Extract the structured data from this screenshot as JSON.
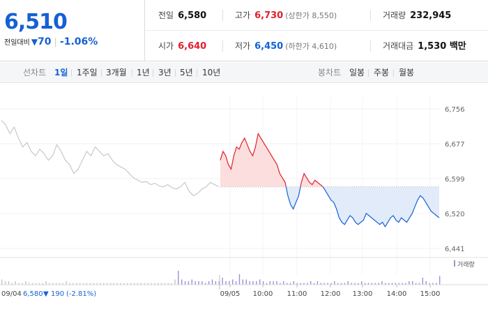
{
  "quote": {
    "price": "6,510",
    "change_label": "전일대비",
    "change_arrow": "▼",
    "change_amount": "70",
    "change_pct": "-1.06%",
    "prev_close": {
      "label": "전일",
      "value": "6,580"
    },
    "high": {
      "label": "고가",
      "value": "6,730",
      "sub": "(상한가 8,550)"
    },
    "volume": {
      "label": "거래량",
      "value": "232,945"
    },
    "open": {
      "label": "시가",
      "value": "6,640"
    },
    "low": {
      "label": "저가",
      "value": "6,450",
      "sub": "(하한가 4,610)"
    },
    "trade_value": {
      "label": "거래대금",
      "value": "1,530 백만"
    }
  },
  "tabs": {
    "line_label": "선차트",
    "line_tabs": [
      "1일",
      "1주일",
      "3개월",
      "1년",
      "3년",
      "5년",
      "10년"
    ],
    "active_line_tab": 0,
    "candle_label": "봉차트",
    "candle_tabs": [
      "일봉",
      "주봉",
      "월봉"
    ]
  },
  "colors": {
    "up": "#e0202c",
    "down": "#1560d4",
    "prev_day": "#c8c8c8",
    "up_fill": "#fcdede",
    "down_fill": "#e1ebf9"
  },
  "chart_data": {
    "type": "line",
    "y_ticks": [
      "6,756",
      "6,677",
      "6,599",
      "6,520",
      "6,441"
    ],
    "ylim": [
      6441,
      6756
    ],
    "baseline": 6580,
    "x_labels": [
      "09/05",
      "10:00",
      "11:00",
      "12:00",
      "13:00",
      "14:00",
      "15:00"
    ],
    "prev_day_label": "09/04",
    "prev_day_summary": {
      "close": "6,580",
      "arrow": "▼",
      "change": "190",
      "pct": "(-2.81%)"
    },
    "volume_legend": "거래량",
    "series": [
      {
        "name": "09/04",
        "values": [
          6730,
          6720,
          6700,
          6715,
          6690,
          6670,
          6680,
          6660,
          6650,
          6665,
          6655,
          6640,
          6650,
          6675,
          6660,
          6640,
          6630,
          6610,
          6620,
          6640,
          6660,
          6650,
          6670,
          6660,
          6650,
          6655,
          6640,
          6630,
          6625,
          6620,
          6610,
          6600,
          6595,
          6590,
          6592,
          6585,
          6588,
          6582,
          6580,
          6585,
          6578,
          6575,
          6580,
          6590,
          6570,
          6560,
          6565,
          6575,
          6580,
          6590,
          6585,
          6580
        ]
      },
      {
        "name": "09/05",
        "values": [
          6640,
          6660,
          6650,
          6630,
          6620,
          6650,
          6670,
          6665,
          6680,
          6690,
          6675,
          6660,
          6650,
          6670,
          6700,
          6690,
          6680,
          6670,
          6660,
          6650,
          6640,
          6630,
          6610,
          6600,
          6590,
          6560,
          6540,
          6530,
          6545,
          6560,
          6590,
          6610,
          6600,
          6590,
          6585,
          6595,
          6590,
          6585,
          6580,
          6570,
          6560,
          6550,
          6545,
          6530,
          6510,
          6500,
          6495,
          6505,
          6515,
          6510,
          6500,
          6495,
          6500,
          6505,
          6520,
          6515,
          6510,
          6505,
          6500,
          6495,
          6500,
          6490,
          6500,
          6510,
          6515,
          6505,
          6500,
          6510,
          6505,
          6500,
          6510,
          6520,
          6535,
          6550,
          6560,
          6555,
          6545,
          6535,
          6525,
          6520,
          6515,
          6510
        ]
      }
    ],
    "volume": [
      3,
      2,
      2,
      1,
      2,
      1,
      1,
      2,
      1,
      1,
      1,
      1,
      1,
      2,
      1,
      1,
      1,
      1,
      1,
      2,
      1,
      1,
      1,
      1,
      1,
      1,
      1,
      1,
      1,
      1,
      1,
      1,
      1,
      1,
      1,
      1,
      1,
      1,
      1,
      1,
      1,
      1,
      1,
      1,
      1,
      1,
      1,
      1,
      1,
      1,
      1,
      3,
      8,
      3,
      2,
      2,
      3,
      2,
      2,
      2,
      1,
      2,
      3,
      2,
      2,
      4,
      2,
      2,
      3,
      2,
      6,
      3,
      3,
      2,
      2,
      2,
      3,
      2,
      1,
      2,
      2,
      2,
      1,
      2,
      1,
      1,
      2,
      1,
      1,
      1,
      1,
      2,
      1,
      2,
      1,
      1,
      1,
      1,
      2,
      1,
      1,
      1,
      2,
      1,
      1,
      1,
      2,
      1,
      1,
      1,
      1,
      1,
      2,
      1,
      1,
      1,
      1,
      1,
      1,
      1,
      2,
      2,
      1,
      1,
      4,
      2,
      1,
      1,
      1,
      5
    ]
  }
}
